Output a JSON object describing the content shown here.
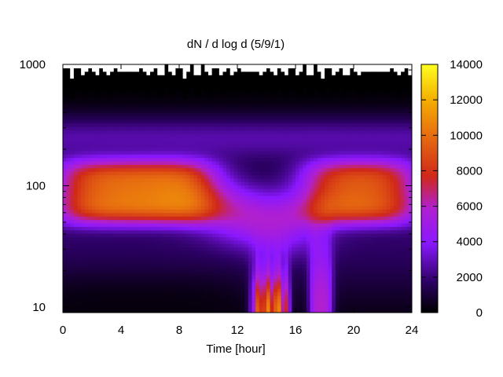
{
  "chart_data": {
    "type": "heatmap",
    "title": "dN / d log d (5/9/1)",
    "xlabel": "Time [hour]",
    "ylabel": "",
    "xlim": [
      0,
      24
    ],
    "ylim": [
      9,
      1000
    ],
    "yscale": "log",
    "x_ticks": [
      0,
      4,
      8,
      12,
      16,
      20,
      24
    ],
    "y_ticks": [
      10,
      100,
      1000
    ],
    "colorbar": {
      "range": [
        0,
        14000
      ],
      "ticks": [
        0,
        2000,
        4000,
        6000,
        8000,
        10000,
        12000,
        14000
      ],
      "palette": "black-purple-red-orange-yellow"
    },
    "features": [
      {
        "name": "main band",
        "diameter_range": [
          50,
          160
        ],
        "peak_value": 9000,
        "time_hours": [
          0,
          10
        ]
      },
      {
        "name": "main band evening",
        "diameter_range": [
          50,
          160
        ],
        "peak_value": 8500,
        "time_hours": [
          17,
          24
        ]
      },
      {
        "name": "new particle burst",
        "diameter_range": [
          9,
          20
        ],
        "peak_value": 11000,
        "time_hours": [
          13,
          15.5
        ]
      },
      {
        "name": "secondary burst",
        "diameter_range": [
          9,
          30
        ],
        "peak_value": 5500,
        "time_hours": [
          17,
          18.5
        ]
      }
    ],
    "grid": false,
    "legend": "colorbar-right"
  }
}
